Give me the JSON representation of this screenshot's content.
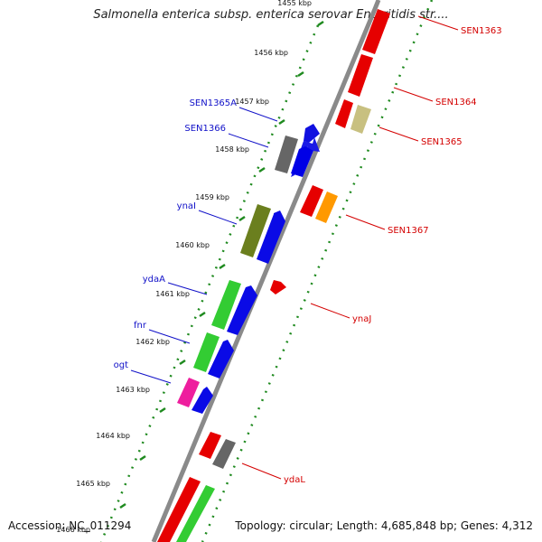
{
  "title": "Salmonella enterica subsp. enterica serovar Enteritidis str....",
  "footer": {
    "accession": "Accession: NC_011294",
    "summary": "Topology: circular; Length: 4,685,848 bp; Genes: 4,312"
  },
  "colors": {
    "backbone": "#7a7a7a",
    "tick": "#1f8a1f",
    "label_left": "#1010c8",
    "label_right": "#d40000"
  },
  "ticks": [
    {
      "label": "1455 kbp"
    },
    {
      "label": "1456 kbp"
    },
    {
      "label": "1457 kbp"
    },
    {
      "label": "1458 kbp"
    },
    {
      "label": "1459 kbp"
    },
    {
      "label": "1460 kbp"
    },
    {
      "label": "1461 kbp"
    },
    {
      "label": "1462 kbp"
    },
    {
      "label": "1463 kbp"
    },
    {
      "label": "1464 kbp"
    },
    {
      "label": "1465 kbp"
    },
    {
      "label": "1466 kbp"
    }
  ],
  "genes_left": [
    {
      "name": "SEN1365A"
    },
    {
      "name": "SEN1366"
    },
    {
      "name": "ynaI"
    },
    {
      "name": "ydaA"
    },
    {
      "name": "fnr"
    },
    {
      "name": "ogt"
    }
  ],
  "genes_right": [
    {
      "name": "SEN1363"
    },
    {
      "name": "SEN1364"
    },
    {
      "name": "SEN1365"
    },
    {
      "name": "SEN1367"
    },
    {
      "name": "ynaJ"
    },
    {
      "name": "ydaL"
    }
  ]
}
